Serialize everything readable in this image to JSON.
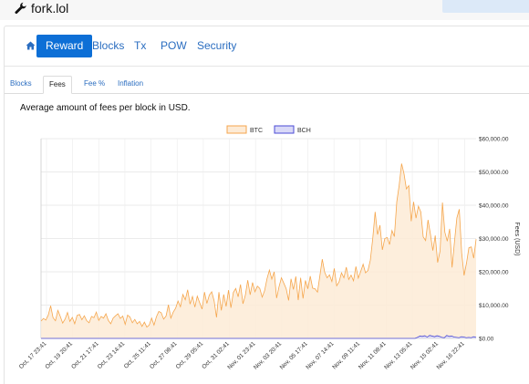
{
  "app": {
    "brand": "fork.lol",
    "brand_icon": "wrench-icon"
  },
  "nav": {
    "home_icon": "home-icon",
    "items": [
      {
        "label": "Reward",
        "active": true
      },
      {
        "label": "Blocks",
        "active": false
      },
      {
        "label": "Tx",
        "active": false
      },
      {
        "label": "POW",
        "active": false
      },
      {
        "label": "Security",
        "active": false
      }
    ]
  },
  "subtabs": [
    {
      "label": "Blocks",
      "active": false
    },
    {
      "label": "Fees",
      "active": true
    },
    {
      "label": "Fee %",
      "active": false
    },
    {
      "label": "Inflation",
      "active": false
    }
  ],
  "description": "Average amount of fees per block in USD.",
  "colors": {
    "btc_line": "#f5a64d",
    "btc_fill": "#fdebd6",
    "bch_line": "#4a4ad6",
    "bch_fill": "#d9d9f7",
    "accent": "#0d6fd6"
  },
  "chart_data": {
    "type": "area",
    "title": "",
    "ylabel": "Fees (USD)",
    "y_axis_position": "right",
    "ylim": [
      0,
      60000
    ],
    "y_ticks": [
      "$0.00",
      "$10,000.00",
      "$20,000.00",
      "$30,000.00",
      "$40,000.00",
      "$50,000.00",
      "$60,000.00"
    ],
    "grid": true,
    "legend_position": "top",
    "x_ticks": [
      "Oct, 17 23:41",
      "Oct, 19 20:41",
      "Oct, 21 17:41",
      "Oct, 23 14:41",
      "Oct, 25 11:41",
      "Oct, 27 08:41",
      "Oct, 29 05:41",
      "Oct, 31 02:41",
      "Nov, 01 23:41",
      "Nov, 03 20:41",
      "Nov, 05 17:41",
      "Nov, 07 14:41",
      "Nov, 09 11:41",
      "Nov, 11 08:41",
      "Nov, 13 05:41",
      "Nov, 15 02:41",
      "Nov, 16 22:41"
    ],
    "series": [
      {
        "name": "BTC",
        "values": [
          5200,
          6000,
          5500,
          7000,
          9800,
          6200,
          5300,
          8400,
          6600,
          4600,
          5800,
          7800,
          5100,
          6300,
          4400,
          6900,
          7200,
          5600,
          6800,
          5300,
          4700,
          6600,
          6200,
          7900,
          5400,
          6600,
          6100,
          7400,
          5400,
          4400,
          6100,
          6800,
          7400,
          6000,
          6700,
          4200,
          7000,
          6400,
          4700,
          5700,
          4400,
          5100,
          3600,
          4900,
          3400,
          4000,
          6100,
          4000,
          6500,
          8100,
          7700,
          5800,
          6700,
          10100,
          6100,
          7900,
          9100,
          11200,
          9500,
          13200,
          11600,
          14600,
          10300,
          12600,
          9400,
          12700,
          10700,
          8800,
          13900,
          10500,
          13000,
          14000,
          11300,
          6300,
          13900,
          8400,
          13200,
          9600,
          14500,
          9200,
          13800,
          15000,
          12500,
          16200,
          10400,
          13000,
          17500,
          13100,
          16800,
          14000,
          15700,
          15000,
          12400,
          14300,
          17900,
          20500,
          17800,
          20000,
          12100,
          15500,
          18200,
          16600,
          14900,
          11400,
          17900,
          14700,
          18600,
          11500,
          18200,
          12000,
          17400,
          14900,
          18700,
          15100,
          14900,
          13900,
          18800,
          23800,
          19900,
          18200,
          19100,
          17100,
          21000,
          15800,
          17000,
          19700,
          18200,
          21400,
          17700,
          19000,
          17300,
          21600,
          18100,
          20100,
          22300,
          19700,
          20400,
          23500,
          30000,
          38000,
          31200,
          34000,
          26600,
          30000,
          30300,
          28200,
          32400,
          30600,
          41000,
          46000,
          52500,
          49500,
          44900,
          45900,
          35200,
          41000,
          36100,
          39700,
          38000,
          30500,
          29400,
          35600,
          31300,
          26400,
          30900,
          22800,
          26200,
          40800,
          31900,
          29200,
          32900,
          21300,
          29000,
          36200,
          38800,
          25700,
          18900,
          22600,
          27200,
          27500,
          24100,
          29800
        ]
      },
      {
        "name": "BCH",
        "values": [
          0,
          0,
          0,
          0,
          0,
          0,
          0,
          0,
          0,
          0,
          0,
          0,
          0,
          0,
          0,
          0,
          0,
          0,
          0,
          0,
          0,
          0,
          0,
          0,
          0,
          0,
          0,
          0,
          0,
          0,
          0,
          0,
          0,
          0,
          0,
          0,
          0,
          0,
          0,
          0,
          0,
          0,
          0,
          0,
          0,
          0,
          0,
          0,
          0,
          0,
          0,
          0,
          0,
          0,
          0,
          0,
          0,
          0,
          0,
          0,
          0,
          0,
          0,
          0,
          0,
          0,
          0,
          0,
          0,
          0,
          0,
          0,
          0,
          0,
          0,
          0,
          0,
          0,
          0,
          0,
          0,
          0,
          0,
          0,
          0,
          0,
          0,
          0,
          0,
          0,
          0,
          0,
          0,
          0,
          0,
          0,
          0,
          0,
          0,
          0,
          0,
          0,
          0,
          0,
          0,
          0,
          0,
          0,
          0,
          0,
          0,
          0,
          0,
          0,
          0,
          0,
          0,
          0,
          0,
          0,
          0,
          0,
          0,
          0,
          0,
          0,
          0,
          0,
          0,
          0,
          0,
          0,
          0,
          0,
          0,
          0,
          0,
          0,
          0,
          0,
          0,
          0,
          0,
          0,
          0,
          0,
          0,
          0,
          0,
          0,
          0,
          0,
          0,
          0,
          300,
          700,
          600,
          800,
          400,
          900,
          700,
          500,
          800,
          600,
          300,
          200,
          900,
          600,
          700,
          400,
          300,
          200,
          500,
          400,
          200,
          300,
          200,
          500,
          300
        ]
      }
    ]
  }
}
